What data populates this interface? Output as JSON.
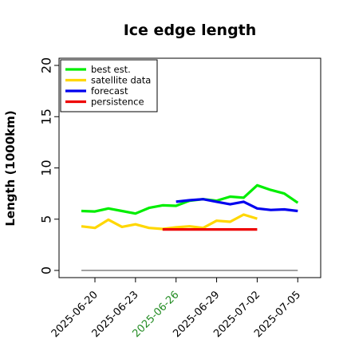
{
  "chart_data": {
    "type": "line",
    "title": "Ice edge length",
    "ylabel": "Length (1000km)",
    "xlabel": "",
    "ylim": [
      0,
      20
    ],
    "yticks": [
      0,
      5,
      10,
      15,
      20
    ],
    "xticks": [
      "2025-06-20",
      "2025-06-23",
      "2025-06-26",
      "2025-06-29",
      "2025-07-02",
      "2025-07-05"
    ],
    "highlight_tick": "2025-06-26",
    "highlight_color": "#228b22",
    "baseline": {
      "value": 0,
      "color": "#808080"
    },
    "grid": false,
    "legend_position": "top-left",
    "series": [
      {
        "name": "best est.",
        "color": "#00ee00",
        "x": [
          "2025-06-19",
          "2025-06-20",
          "2025-06-21",
          "2025-06-22",
          "2025-06-23",
          "2025-06-24",
          "2025-06-25",
          "2025-06-26",
          "2025-06-27",
          "2025-06-28",
          "2025-06-29",
          "2025-06-30",
          "2025-07-01",
          "2025-07-02",
          "2025-07-03",
          "2025-07-04",
          "2025-07-05"
        ],
        "y": [
          5.8,
          5.75,
          6.05,
          5.8,
          5.55,
          6.1,
          6.35,
          6.3,
          6.8,
          6.95,
          6.8,
          7.2,
          7.1,
          8.3,
          7.85,
          7.5,
          6.6
        ]
      },
      {
        "name": "satellite data",
        "color": "#ffd700",
        "x": [
          "2025-06-19",
          "2025-06-20",
          "2025-06-21",
          "2025-06-22",
          "2025-06-23",
          "2025-06-24",
          "2025-06-25",
          "2025-06-26",
          "2025-06-27",
          "2025-06-28",
          "2025-06-29",
          "2025-06-30",
          "2025-07-01",
          "2025-07-02"
        ],
        "y": [
          4.3,
          4.15,
          4.95,
          4.25,
          4.5,
          4.15,
          4.05,
          4.2,
          4.3,
          4.15,
          4.85,
          4.75,
          5.45,
          5.05
        ]
      },
      {
        "name": "forecast",
        "color": "#0000ee",
        "x": [
          "2025-06-26",
          "2025-06-27",
          "2025-06-28",
          "2025-06-29",
          "2025-06-30",
          "2025-07-01",
          "2025-07-02",
          "2025-07-03",
          "2025-07-04",
          "2025-07-05"
        ],
        "y": [
          6.7,
          6.85,
          6.95,
          6.7,
          6.45,
          6.7,
          6.05,
          5.9,
          5.95,
          5.8
        ]
      },
      {
        "name": "persistence",
        "color": "#ee0000",
        "x": [
          "2025-06-25",
          "2025-07-02"
        ],
        "y": [
          4.0,
          4.0
        ]
      }
    ]
  }
}
